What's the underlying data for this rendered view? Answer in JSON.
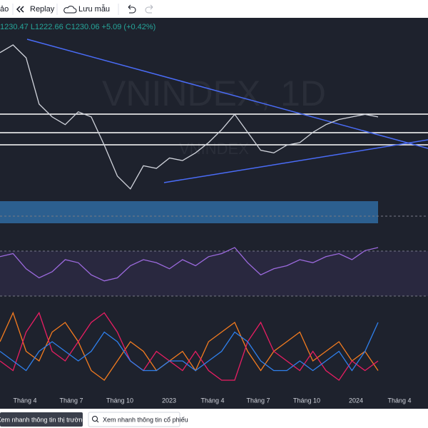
{
  "toolbar": {
    "items": [
      "ảo",
      "Replay",
      "Lưu mẫu"
    ]
  },
  "legend": {
    "ohlc": "1230.47 L1222.66 C1230.06 +5.09 (+0.42%)"
  },
  "watermark": {
    "title": "VNINDEX, 1D",
    "subtitle": "VNINDEX"
  },
  "x_axis": {
    "labels": [
      "Tháng 4",
      "Tháng 7",
      "Tháng 10",
      "2023",
      "Tháng 4",
      "Tháng 7",
      "Tháng 10",
      "2024",
      "Tháng 4"
    ]
  },
  "footer": {
    "market_button": "Xem nhanh thông tin thị trường",
    "stock_search": "Xem nhanh thông tin cổ phiếu"
  },
  "chart_data": [
    {
      "type": "line",
      "ylim": [
        880,
        1560
      ],
      "color": "#d1d4dc",
      "values": [
        1480,
        1510,
        1460,
        1280,
        1230,
        1200,
        1250,
        1230,
        1120,
        1000,
        950,
        1040,
        1030,
        1070,
        1060,
        1090,
        1130,
        1180,
        1240,
        1170,
        1100,
        1090,
        1120,
        1130,
        1170,
        1200,
        1220,
        1230,
        1240,
        1230
      ]
    },
    {
      "type": "line",
      "ylim": [
        0,
        100
      ],
      "color": "#9c6ade",
      "values": [
        65,
        70,
        45,
        30,
        40,
        60,
        55,
        35,
        25,
        30,
        50,
        60,
        55,
        45,
        60,
        50,
        65,
        70,
        80,
        55,
        35,
        45,
        50,
        60,
        55,
        65,
        70,
        60,
        75,
        80
      ]
    },
    {
      "type": "line",
      "ylim": [
        0,
        50
      ],
      "series": [
        {
          "color": "#f57c1f",
          "values": [
            30,
            45,
            25,
            20,
            35,
            40,
            30,
            15,
            10,
            20,
            30,
            25,
            15,
            20,
            25,
            15,
            30,
            35,
            40,
            25,
            15,
            25,
            30,
            35,
            20,
            25,
            30,
            20,
            25,
            15
          ]
        },
        {
          "color": "#e91e63",
          "values": [
            20,
            15,
            35,
            45,
            25,
            20,
            30,
            40,
            45,
            35,
            20,
            15,
            25,
            20,
            15,
            25,
            15,
            10,
            10,
            30,
            40,
            25,
            20,
            15,
            25,
            15,
            10,
            20,
            15,
            20
          ]
        },
        {
          "color": "#2f80ed",
          "values": [
            25,
            20,
            15,
            25,
            30,
            25,
            20,
            25,
            35,
            30,
            20,
            15,
            15,
            20,
            20,
            15,
            20,
            25,
            35,
            30,
            20,
            15,
            15,
            20,
            15,
            20,
            25,
            15,
            25,
            40
          ]
        }
      ]
    }
  ]
}
